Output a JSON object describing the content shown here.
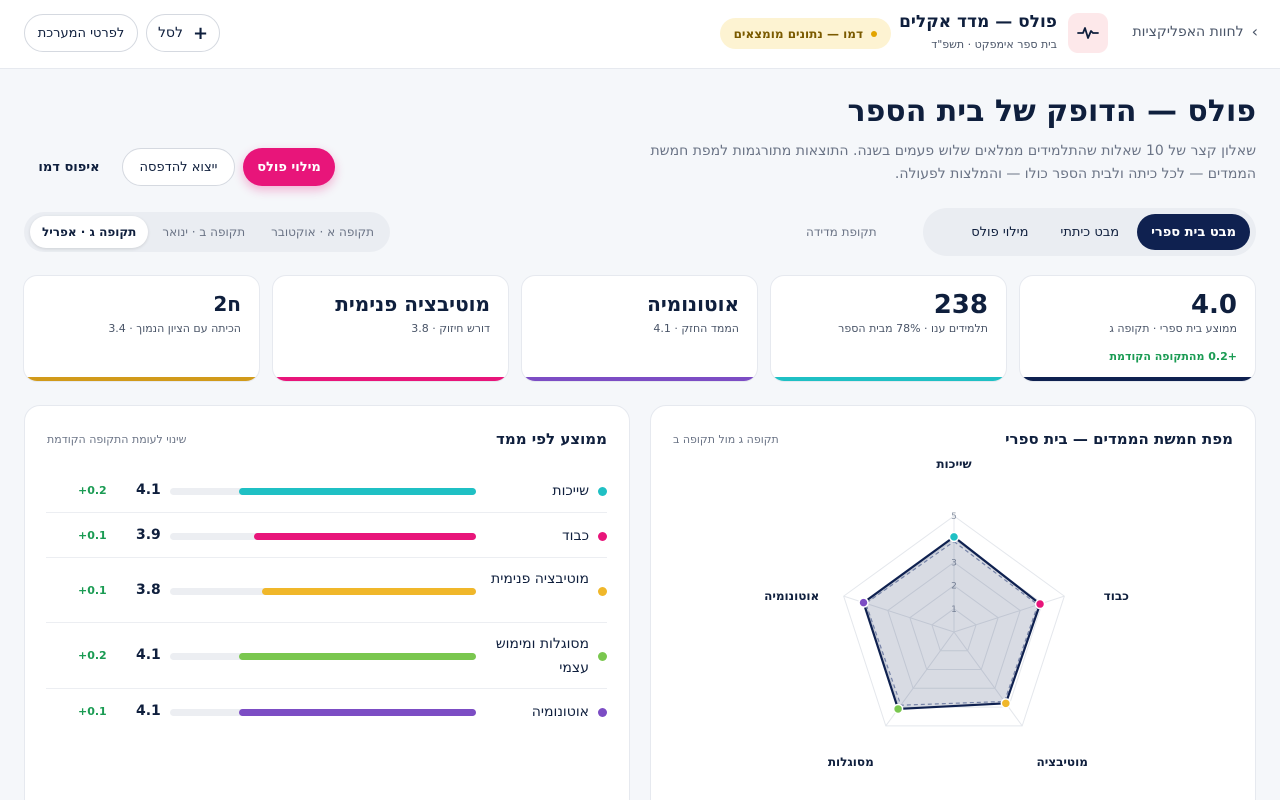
{
  "topbar": {
    "back_label": "לחוות האפליקציות",
    "app_title": "פולס — מדד אקלים",
    "app_subtitle": "בית ספר אימפקט · תשפ\"ד",
    "demo_badge": "דמו — נתונים מומצאים",
    "cart_label": "לסל",
    "system_details_label": "לפרטי המערכת"
  },
  "header": {
    "title": "פולס — הדופק של בית הספר",
    "description": "שאלון קצר של 10 שאלות שהתלמידים ממלאים שלוש פעמים בשנה. התוצאות מתורגמות למפת חמשת הממדים — לכל כיתה ולבית הספר כולו — והמלצות לפעולה.",
    "fill_label": "מילוי פולס",
    "print_label": "ייצוא להדפסה",
    "reset_label": "איפוס דמו"
  },
  "view_tabs": [
    {
      "label": "מבט בית ספרי",
      "active": true
    },
    {
      "label": "מבט כיתתי",
      "active": false
    },
    {
      "label": "מילוי פולס",
      "active": false
    }
  ],
  "period": {
    "label": "תקופת מדידה",
    "tabs": [
      {
        "label": "תקופה א · אוקטובר",
        "active": false
      },
      {
        "label": "תקופה ב · ינואר",
        "active": false
      },
      {
        "label": "תקופה ג · אפריל",
        "active": true
      }
    ]
  },
  "stats": [
    {
      "value": "4.0",
      "label": "ממוצע בית ספרי · תקופה ג",
      "delta": "+0.2 מהתקופה הקודמת",
      "color": "#0f2150"
    },
    {
      "value": "238",
      "label": "תלמידים ענו · 78% מבית הספר",
      "delta": "",
      "color": "#1fc0c4"
    },
    {
      "value": "אוטונומיה",
      "label": "הממד החזק · 4.1",
      "delta": "",
      "color": "#7c4dc4"
    },
    {
      "value": "מוטיבציה פנימית",
      "label": "דורש חיזוק · 3.8",
      "delta": "",
      "color": "#e8157a"
    },
    {
      "value": "ח2",
      "label": "הכיתה עם הציון הנמוך · 3.4",
      "delta": "",
      "color": "#d19a1a"
    }
  ],
  "radar_panel": {
    "title": "מפת חמשת הממדים — בית ספרי",
    "hint": "תקופה ג מול תקופה ב",
    "axes": [
      "שייכות",
      "כבוד",
      "מוטיבציה",
      "מסוגלות",
      "אוטונומיה"
    ],
    "scale_labels": [
      "1",
      "2",
      "3",
      "4",
      "5"
    ],
    "current": [
      4.1,
      3.9,
      3.8,
      4.1,
      4.1
    ],
    "previous": [
      3.9,
      3.8,
      3.7,
      3.9,
      4.0
    ],
    "max": 5,
    "colors": [
      "#1fc0c4",
      "#e8157a",
      "#f0b72a",
      "#7ac74f",
      "#7c4dc4"
    ]
  },
  "dims_panel": {
    "title": "ממוצע לפי ממד",
    "hint": "שינוי לעומת התקופה הקודמת",
    "rows": [
      {
        "name": "שייכות",
        "score": "4.1",
        "value": 4.1,
        "delta": "+0.2",
        "color": "#1fc0c4"
      },
      {
        "name": "כבוד",
        "score": "3.9",
        "value": 3.9,
        "delta": "+0.1",
        "color": "#e8157a"
      },
      {
        "name": "מוטיבציה פנימית",
        "score": "3.8",
        "value": 3.8,
        "delta": "+0.1",
        "color": "#f0b72a"
      },
      {
        "name": "מסוגלות ומימוש עצמי",
        "score": "4.1",
        "value": 4.1,
        "delta": "+0.2",
        "color": "#7ac74f"
      },
      {
        "name": "אוטונומיה",
        "score": "4.1",
        "value": 4.1,
        "delta": "+0.1",
        "color": "#7c4dc4"
      }
    ]
  }
}
